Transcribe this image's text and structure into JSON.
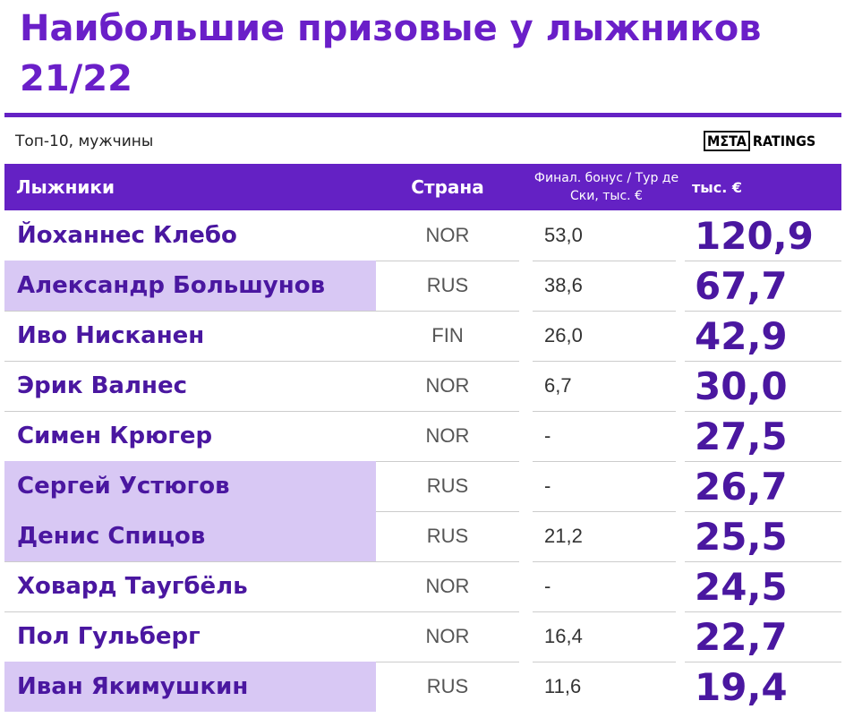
{
  "header": {
    "title": "Наибольшие призовые у лыжников 21/22",
    "subtitle": "Топ-10, мужчины",
    "logo": {
      "mark": "MΣTA",
      "text": "RATINGS"
    }
  },
  "table": {
    "columns": [
      "Лыжники",
      "Страна",
      "Финал. бонус / Тур де Ски, тыс. €",
      "тыс. €"
    ],
    "rows": [
      [
        "Йоханнес Клебо",
        "NOR",
        "53,0",
        "120,9"
      ],
      [
        "Александр Большунов",
        "RUS",
        "38,6",
        "67,7"
      ],
      [
        "Иво Нисканен",
        "FIN",
        "26,0",
        "42,9"
      ],
      [
        "Эрик Валнес",
        "NOR",
        "6,7",
        "30,0"
      ],
      [
        "Симен Крюгер",
        "NOR",
        "-",
        "27,5"
      ],
      [
        "Сергей Устюгов",
        "RUS",
        "-",
        "26,7"
      ],
      [
        "Денис Спицов",
        "RUS",
        "21,2",
        "25,5"
      ],
      [
        "Ховард Таугбёль",
        "NOR",
        "-",
        "24,5"
      ],
      [
        "Пол Гульберг",
        "NOR",
        "16,4",
        "22,7"
      ],
      [
        "Иван Якимушкин",
        "RUS",
        "11,6",
        "19,4"
      ]
    ],
    "highlighted_rows": [
      1,
      5,
      6,
      9
    ],
    "highlight_color": "#d8c8f4",
    "accent_color": "#6421c4"
  }
}
